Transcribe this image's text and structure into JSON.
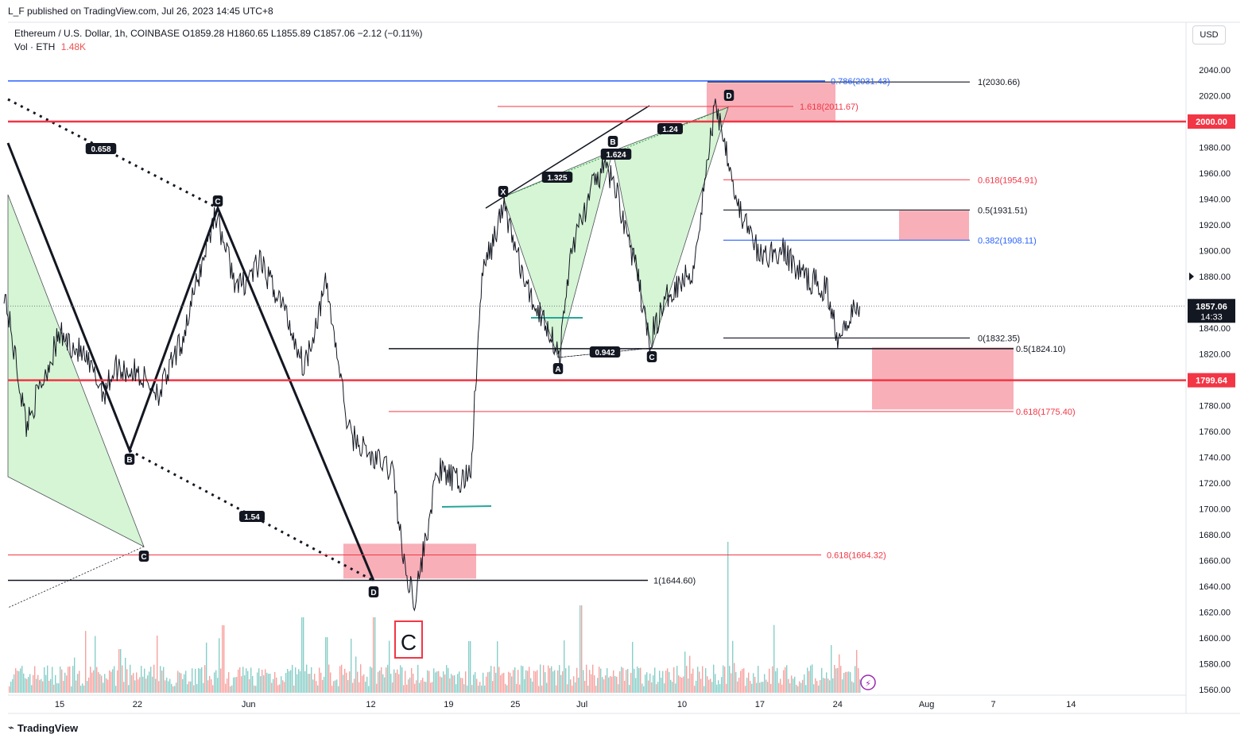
{
  "header": {
    "published": "L_F published on TradingView.com, Jul 26, 2023 14:45 UTC+8"
  },
  "legend": {
    "symbol": "Ethereum / U.S. Dollar, 1h, COINBASE",
    "open": "O1859.28",
    "high": "H1860.65",
    "low": "L1855.89",
    "close": "C1857.06",
    "change": "−2.12 (−0.11%)",
    "vol_label": "Vol · ETH",
    "vol_value": "1.48K"
  },
  "currency_button": "USD",
  "footer": {
    "brand": "TradingView"
  },
  "colors": {
    "red_level": "#f23645",
    "blue_level": "#2962ff",
    "zone_fill": "#f7a1ab",
    "pattern_fill": "#c8f2c8",
    "vol_up": "#26a69a",
    "vol_down": "#ef5350"
  },
  "chart_data": {
    "type": "line",
    "title": "Ethereum / U.S. Dollar, 1h, COINBASE",
    "y_axis": {
      "ticks": [
        1560,
        1580,
        1600,
        1620,
        1640,
        1660,
        1680,
        1700,
        1720,
        1740,
        1760,
        1780,
        1800,
        1820,
        1840,
        1860,
        1880,
        1900,
        1920,
        1940,
        1960,
        1980,
        2000,
        2020,
        2040
      ],
      "tick_labels": [
        "1560.00",
        "1580.00",
        "1600.00",
        "1620.00",
        "1640.00",
        "1660.00",
        "1680.00",
        "1700.00",
        "1720.00",
        "1740.00",
        "1760.00",
        "1780.00",
        "1800.00",
        "1820.00",
        "1840.00",
        "1860.00",
        "1880.00",
        "1900.00",
        "1920.00",
        "1940.00",
        "1960.00",
        "1980.00",
        "2000.00",
        "2020.00",
        "2040.00"
      ],
      "range": [
        1555,
        2050
      ]
    },
    "x_axis": {
      "tick_labels": [
        "15",
        "22",
        "Jun",
        "12",
        "19",
        "25",
        "Jul",
        "10",
        "17",
        "24",
        "Aug",
        "7",
        "14"
      ]
    },
    "last_price": {
      "value": "1857.06",
      "countdown": "14:33"
    },
    "price_labels": [
      {
        "value": 2000.0,
        "text": "2000.00"
      },
      {
        "value": 1799.64,
        "text": "1799.64"
      }
    ],
    "series": [
      {
        "name": "Close",
        "x": [
          "2023-05-10",
          "2023-05-12",
          "2023-05-15",
          "2023-05-17",
          "2023-05-19",
          "2023-05-20",
          "2023-05-22",
          "2023-05-24",
          "2023-05-26",
          "2023-05-29",
          "2023-05-31",
          "2023-06-02",
          "2023-06-04",
          "2023-06-06",
          "2023-06-08",
          "2023-06-10",
          "2023-06-12",
          "2023-06-14",
          "2023-06-15",
          "2023-06-16",
          "2023-06-18",
          "2023-06-20",
          "2023-06-21",
          "2023-06-22",
          "2023-06-24",
          "2023-06-26",
          "2023-06-28",
          "2023-06-29",
          "2023-06-30",
          "2023-07-02",
          "2023-07-03",
          "2023-07-04",
          "2023-07-06",
          "2023-07-07",
          "2023-07-09",
          "2023-07-11",
          "2023-07-13",
          "2023-07-14",
          "2023-07-15",
          "2023-07-17",
          "2023-07-19",
          "2023-07-21",
          "2023-07-23",
          "2023-07-24",
          "2023-07-25",
          "2023-07-26"
        ],
        "y": [
          1870,
          1765,
          1835,
          1820,
          1790,
          1810,
          1805,
          1790,
          1830,
          1930,
          1870,
          1890,
          1860,
          1810,
          1875,
          1760,
          1740,
          1730,
          1655,
          1630,
          1730,
          1720,
          1730,
          1880,
          1935,
          1870,
          1840,
          1818,
          1900,
          1950,
          1965,
          1950,
          1880,
          1830,
          1870,
          1885,
          2015,
          1980,
          1935,
          1895,
          1900,
          1880,
          1870,
          1835,
          1850,
          1857
        ]
      }
    ],
    "volume": {
      "label": "Vol · ETH",
      "last": "1.48K"
    },
    "levels": [
      {
        "label": "1(2030.66)",
        "value": 2030.66
      },
      {
        "label": "0.786(2031.43)",
        "value": 2031.43
      },
      {
        "label": "1.618(2011.67)",
        "value": 2011.67
      },
      {
        "label": "0.618(1954.91)",
        "value": 1954.91
      },
      {
        "label": "0.5(1931.51)",
        "value": 1931.51
      },
      {
        "label": "0.382(1908.11)",
        "value": 1908.11
      },
      {
        "label": "0(1832.35)",
        "value": 1832.35
      },
      {
        "label": "0.5(1824.10)",
        "value": 1824.1
      },
      {
        "label": "0.618(1775.40)",
        "value": 1775.4
      },
      {
        "label": "0.618(1664.32)",
        "value": 1664.32
      },
      {
        "label": "1(1644.60)",
        "value": 1644.6
      }
    ],
    "pattern_points": [
      "X",
      "A",
      "B",
      "C",
      "D",
      "C",
      "B",
      "D",
      "C",
      "D",
      "B"
    ],
    "ratio_labels": [
      "0.658",
      "1.54",
      "1.325",
      "1.624",
      "1.24",
      "0.942"
    ],
    "big_label": "C"
  }
}
